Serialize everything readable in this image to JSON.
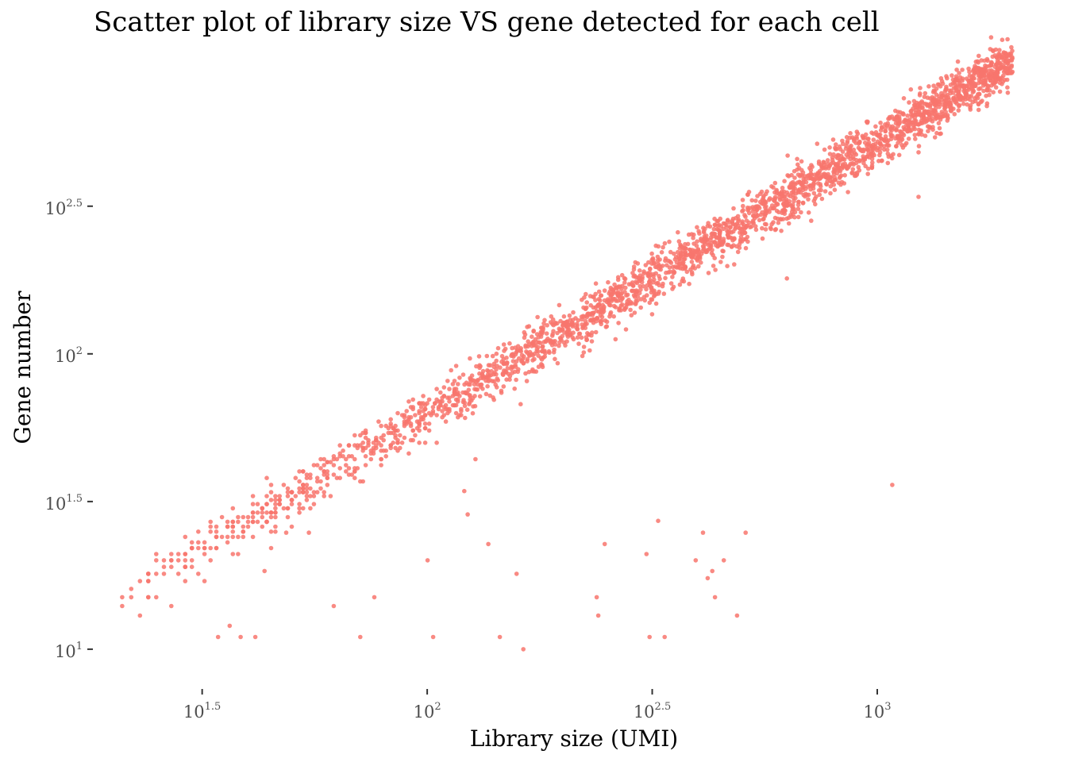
{
  "chart_data": {
    "type": "scatter",
    "title": "Scatter plot of library size VS gene detected for each cell",
    "xlabel": "Library size (UMI)",
    "ylabel": "Gene number",
    "x_scale": "log10",
    "y_scale": "log10",
    "xlim": [
      18.6,
      2120
    ],
    "ylim": [
      8.3,
      950
    ],
    "x_ticks": [
      {
        "base": "10",
        "exp": "1.5",
        "value": 31.62
      },
      {
        "base": "10",
        "exp": "2",
        "value": 100
      },
      {
        "base": "10",
        "exp": "2.5",
        "value": 316.2
      },
      {
        "base": "10",
        "exp": "3",
        "value": 1000
      }
    ],
    "y_ticks": [
      {
        "base": "10",
        "exp": "1",
        "value": 10
      },
      {
        "base": "10",
        "exp": "1.5",
        "value": 31.62
      },
      {
        "base": "10",
        "exp": "2",
        "value": 100
      },
      {
        "base": "10",
        "exp": "2.5",
        "value": 316.2
      }
    ],
    "grid": false,
    "legend": "none",
    "point_color": "#f8766d",
    "trend": {
      "description": "dense band along gene number rising with library size",
      "x_range": [
        20,
        2000
      ],
      "y_range": [
        11,
        860
      ],
      "approx_point_count": 2600
    },
    "outliers": [
      {
        "x": 34.3,
        "y": 11.0
      },
      {
        "x": 36.4,
        "y": 12.0
      },
      {
        "x": 38.5,
        "y": 11.0
      },
      {
        "x": 41.5,
        "y": 11.0
      },
      {
        "x": 43.5,
        "y": 18.4
      },
      {
        "x": 48.6,
        "y": 24.8
      },
      {
        "x": 54.6,
        "y": 24.8
      },
      {
        "x": 62.0,
        "y": 14.0
      },
      {
        "x": 71.0,
        "y": 11.0
      },
      {
        "x": 76.3,
        "y": 15.0
      },
      {
        "x": 100.2,
        "y": 20.0
      },
      {
        "x": 103.1,
        "y": 11.0
      },
      {
        "x": 120.9,
        "y": 34.3
      },
      {
        "x": 123.0,
        "y": 28.6
      },
      {
        "x": 128.0,
        "y": 44.0
      },
      {
        "x": 136.7,
        "y": 22.7
      },
      {
        "x": 145.0,
        "y": 11.0
      },
      {
        "x": 158.0,
        "y": 18.0
      },
      {
        "x": 163.5,
        "y": 10.0
      },
      {
        "x": 238.0,
        "y": 15.0
      },
      {
        "x": 240.0,
        "y": 13.0
      },
      {
        "x": 248.0,
        "y": 22.7
      },
      {
        "x": 307.0,
        "y": 21.0
      },
      {
        "x": 312.0,
        "y": 11.0
      },
      {
        "x": 326.0,
        "y": 27.2
      },
      {
        "x": 337.0,
        "y": 11.0
      },
      {
        "x": 395.0,
        "y": 20.0
      },
      {
        "x": 410.0,
        "y": 24.8
      },
      {
        "x": 420.0,
        "y": 17.4
      },
      {
        "x": 430.0,
        "y": 18.4
      },
      {
        "x": 436.0,
        "y": 15.0
      },
      {
        "x": 456.0,
        "y": 20.0
      },
      {
        "x": 488.0,
        "y": 13.0
      },
      {
        "x": 510.0,
        "y": 24.8
      },
      {
        "x": 1080.0,
        "y": 36.0
      },
      {
        "x": 1235.0,
        "y": 340.0
      },
      {
        "x": 630.0,
        "y": 180.0
      }
    ]
  }
}
